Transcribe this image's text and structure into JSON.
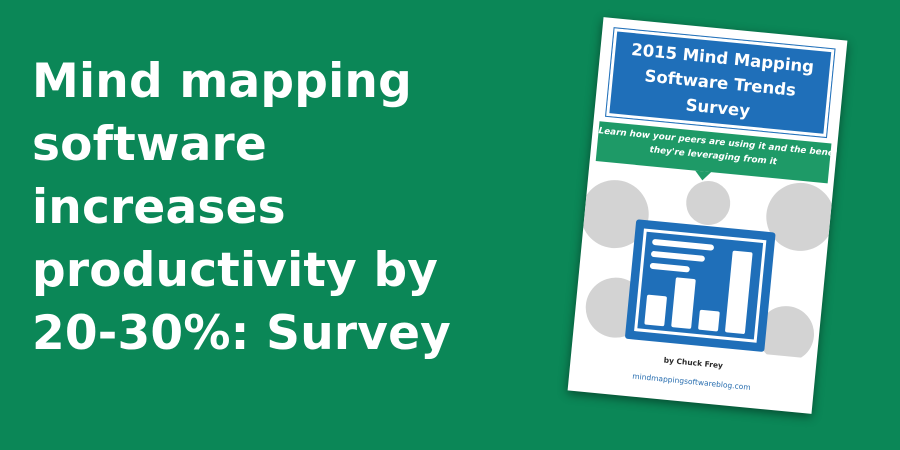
{
  "colors": {
    "background": "#0b8757",
    "cover_blue": "#1f6fb9",
    "cover_green": "#1e9a67",
    "cover_gray": "#d3d3d3",
    "url_blue": "#2a6fb0"
  },
  "headline": {
    "lines": [
      "Mind mapping",
      "software",
      "increases",
      "productivity by",
      "20-30%: Survey"
    ]
  },
  "report_cover": {
    "title_lines": [
      "2015 Mind Mapping",
      "Software Trends",
      "Survey"
    ],
    "subtitle_lines": [
      "Learn how your peers are using it and the benefits",
      "they're leveraging from it"
    ],
    "illustration": "bar-chart-icon",
    "author": "by Chuck Frey",
    "url": "mindmappingsoftwareblog.com"
  }
}
